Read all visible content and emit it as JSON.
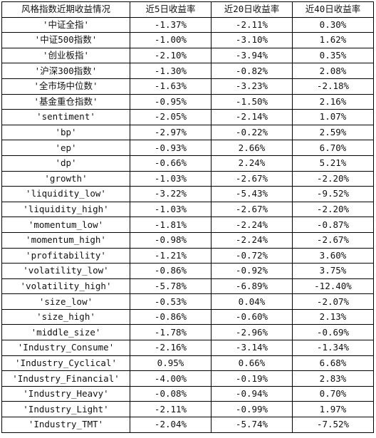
{
  "table": {
    "headers": [
      "风格指数近期收益情况",
      "近5日收益率",
      "近20日收益率",
      "近40日收益率"
    ],
    "rows": [
      [
        "'中证全指'",
        "-1.37%",
        "-2.11%",
        "0.30%"
      ],
      [
        "'中证500指数'",
        "-1.00%",
        "-3.10%",
        "1.62%"
      ],
      [
        "'创业板指'",
        "-2.10%",
        "-3.94%",
        "0.35%"
      ],
      [
        "'沪深300指数'",
        "-1.30%",
        "-0.82%",
        "2.08%"
      ],
      [
        "'全市场中位数'",
        "-1.63%",
        "-3.23%",
        "-2.18%"
      ],
      [
        "'基金重仓指数'",
        "-0.95%",
        "-1.50%",
        "2.16%"
      ],
      [
        "'sentiment'",
        "-2.05%",
        "-2.14%",
        "1.07%"
      ],
      [
        "'bp'",
        "-2.97%",
        "-0.22%",
        "2.59%"
      ],
      [
        "'ep'",
        "-0.93%",
        "2.66%",
        "6.70%"
      ],
      [
        "'dp'",
        "-0.66%",
        "2.24%",
        "5.21%"
      ],
      [
        "'growth'",
        "-1.03%",
        "-2.67%",
        "-2.20%"
      ],
      [
        "'liquidity_low'",
        "-3.22%",
        "-5.43%",
        "-9.52%"
      ],
      [
        "'liquidity_high'",
        "-1.03%",
        "-2.67%",
        "-2.20%"
      ],
      [
        "'momentum_low'",
        "-1.81%",
        "-2.24%",
        "-0.87%"
      ],
      [
        "'momentum_high'",
        "-0.98%",
        "-2.24%",
        "-2.67%"
      ],
      [
        "'profitability'",
        "-1.21%",
        "-0.72%",
        "3.60%"
      ],
      [
        "'volatility_low'",
        "-0.86%",
        "-0.92%",
        "3.75%"
      ],
      [
        "'volatility_high'",
        "-5.78%",
        "-6.89%",
        "-12.40%"
      ],
      [
        "'size_low'",
        "-0.53%",
        "0.04%",
        "-2.07%"
      ],
      [
        "'size_high'",
        "-0.86%",
        "-0.60%",
        "2.13%"
      ],
      [
        "'middle_size'",
        "-1.78%",
        "-2.96%",
        "-0.69%"
      ],
      [
        "'Industry_Consume'",
        "-2.16%",
        "-3.14%",
        "-1.34%"
      ],
      [
        "'Industry_Cyclical'",
        "0.95%",
        "0.66%",
        "6.68%"
      ],
      [
        "'Industry_Financial'",
        "-4.00%",
        "-0.19%",
        "2.83%"
      ],
      [
        "'Industry_Heavy'",
        "-0.08%",
        "-0.94%",
        "0.70%"
      ],
      [
        "'Industry_Light'",
        "-2.11%",
        "-0.99%",
        "1.97%"
      ],
      [
        "'Industry_TMT'",
        "-2.04%",
        "-5.74%",
        "-7.52%"
      ]
    ]
  }
}
